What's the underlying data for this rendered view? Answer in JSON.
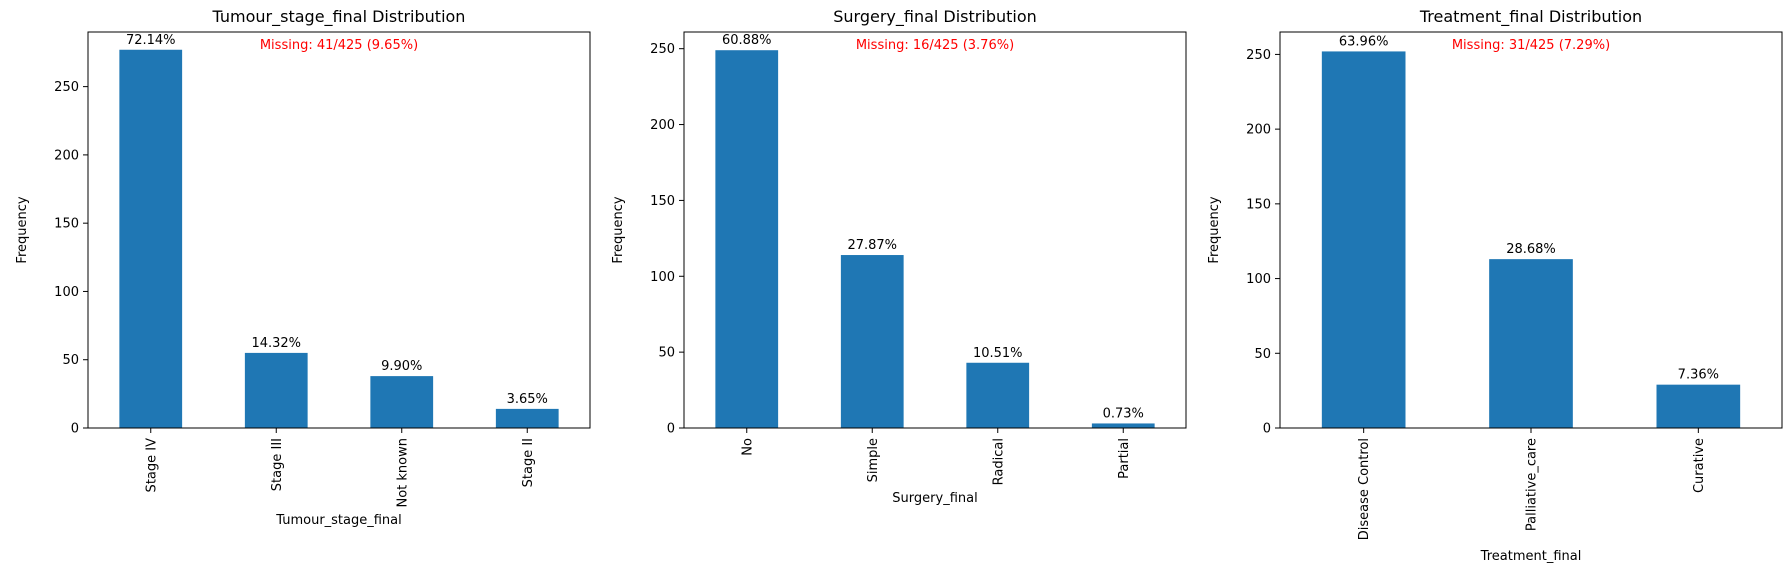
{
  "colors": {
    "bar": "#1f77b4",
    "missing_note": "#ff0000",
    "axis": "#000000"
  },
  "chart_data": [
    {
      "type": "bar",
      "title": "Tumour_stage_final Distribution",
      "xlabel": "Tumour_stage_final",
      "ylabel": "Frequency",
      "categories": [
        "Stage IV",
        "Stage III",
        "Not known",
        "Stage II"
      ],
      "values": [
        277,
        55,
        38,
        14
      ],
      "data_labels": [
        "72.14%",
        "14.32%",
        "9.90%",
        "3.65%"
      ],
      "ylim": [
        0,
        290
      ],
      "yticks": [
        0,
        50,
        100,
        150,
        200,
        250
      ],
      "ytick_labels": [
        "0",
        "50",
        "100",
        "150",
        "200",
        "250"
      ],
      "note": "Missing: 41/425 (9.65%)"
    },
    {
      "type": "bar",
      "title": "Surgery_final Distribution",
      "xlabel": "Surgery_final",
      "ylabel": "Frequency",
      "categories": [
        "No",
        "Simple",
        "Radical",
        "Partial"
      ],
      "values": [
        249,
        114,
        43,
        3
      ],
      "data_labels": [
        "60.88%",
        "27.87%",
        "10.51%",
        "0.73%"
      ],
      "ylim": [
        0,
        261
      ],
      "yticks": [
        0,
        50,
        100,
        150,
        200,
        250
      ],
      "ytick_labels": [
        "0",
        "50",
        "100",
        "150",
        "200",
        "250"
      ],
      "note": "Missing: 16/425 (3.76%)"
    },
    {
      "type": "bar",
      "title": "Treatment_final Distribution",
      "xlabel": "Treatment_final",
      "ylabel": "Frequency",
      "categories": [
        "Disease Control",
        "Palliative_care",
        "Curative"
      ],
      "values": [
        252,
        113,
        29
      ],
      "data_labels": [
        "63.96%",
        "28.68%",
        "7.36%"
      ],
      "ylim": [
        0,
        265
      ],
      "yticks": [
        0,
        50,
        100,
        150,
        200,
        250
      ],
      "ytick_labels": [
        "0",
        "50",
        "100",
        "150",
        "200",
        "250"
      ],
      "note": "Missing: 31/425 (7.29%)"
    }
  ]
}
